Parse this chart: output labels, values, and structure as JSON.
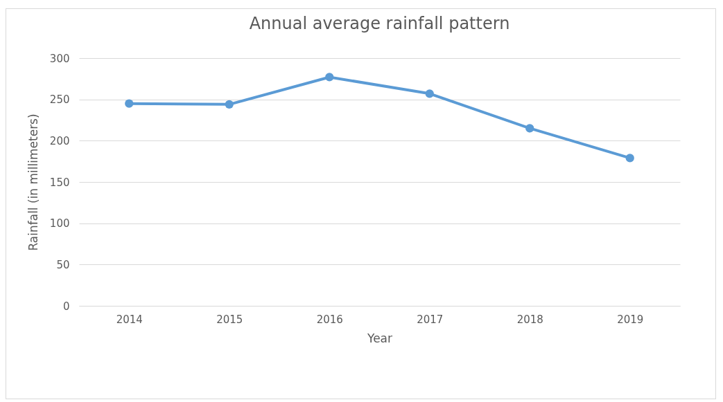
{
  "chart_data": {
    "type": "line",
    "title": "Annual average rainfall pattern",
    "xlabel": "Year",
    "ylabel": "Rainfall (in millimeters)",
    "categories": [
      "2014",
      "2015",
      "2016",
      "2017",
      "2018",
      "2019"
    ],
    "series": [
      {
        "color": "#5b9bd5",
        "values": [
          245,
          244,
          277,
          257,
          215,
          179
        ]
      }
    ],
    "ylim": [
      0,
      300
    ],
    "yticks": [
      0,
      50,
      100,
      150,
      200,
      250,
      300
    ],
    "grid": "y",
    "marker": "circle",
    "line_style": "solid"
  }
}
